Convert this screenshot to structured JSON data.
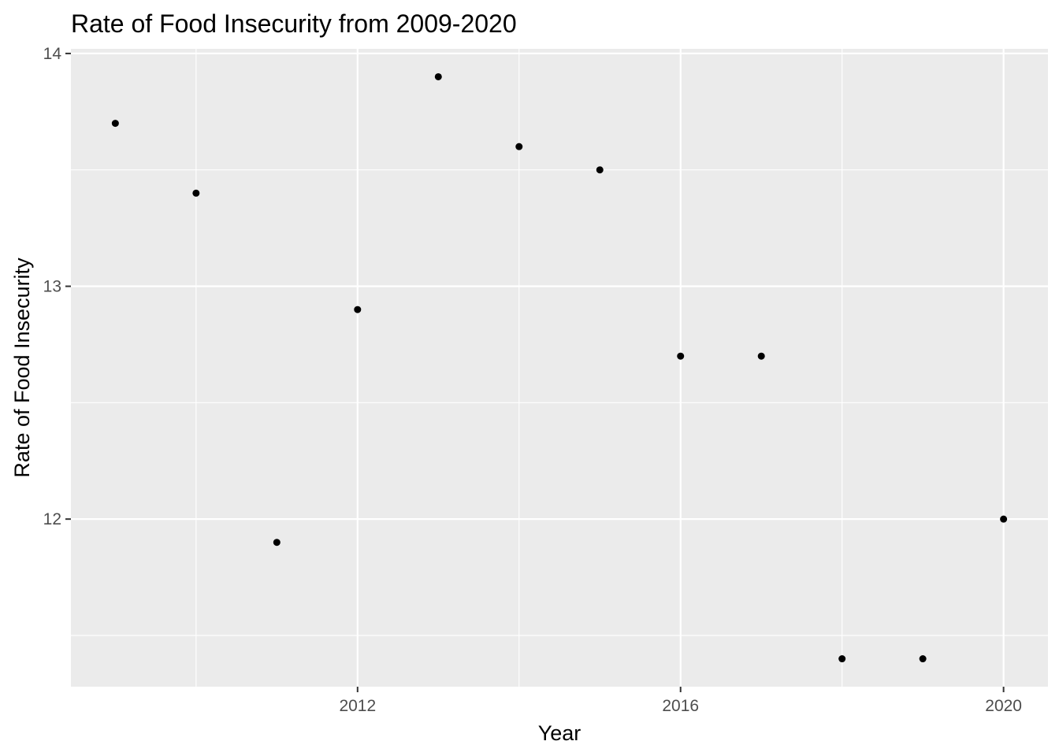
{
  "chart_data": {
    "type": "scatter",
    "title": "Rate of Food Insecurity from 2009-2020",
    "xlabel": "Year",
    "ylabel": "Rate of Food Insecurity",
    "x": [
      2009,
      2010,
      2011,
      2012,
      2013,
      2014,
      2015,
      2016,
      2017,
      2018,
      2019,
      2020
    ],
    "y": [
      13.7,
      13.4,
      11.9,
      12.9,
      13.9,
      13.6,
      13.5,
      12.7,
      12.7,
      11.4,
      11.4,
      12.0
    ],
    "xlim": [
      2008.45,
      2020.55
    ],
    "ylim": [
      11.28,
      14.02
    ],
    "x_major_ticks": [
      2012,
      2016,
      2020
    ],
    "x_minor_ticks": [
      2010,
      2014,
      2018
    ],
    "y_major_ticks": [
      12,
      13,
      14
    ],
    "y_minor_ticks": [
      11.5,
      12.5,
      13.5
    ],
    "x_tick_labels": [
      "2012",
      "2016",
      "2020"
    ],
    "y_tick_labels": [
      "12",
      "13",
      "14"
    ],
    "grid": true,
    "legend": "none",
    "colors": {
      "panel_background": "#ebebeb",
      "grid": "#ffffff",
      "point": "#000000",
      "tick": "#333333"
    }
  }
}
